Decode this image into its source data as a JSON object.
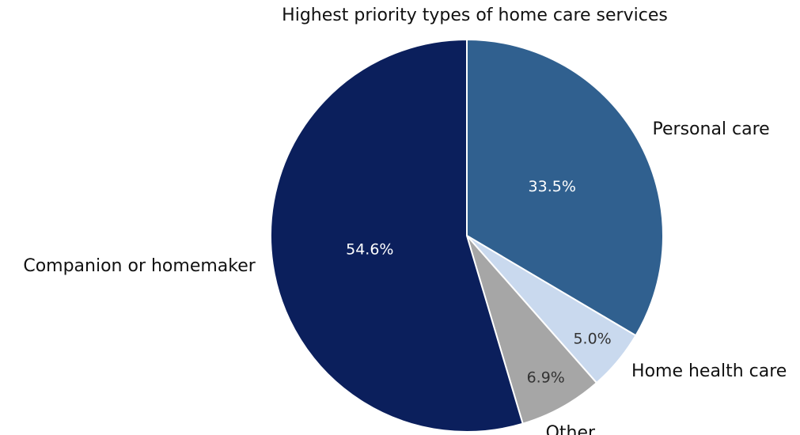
{
  "chart_data": {
    "type": "pie",
    "title": "Highest priority types of home care services",
    "categories": [
      "Personal care",
      "Home health care",
      "Other",
      "Companion or homemaker"
    ],
    "values": [
      33.5,
      5.0,
      6.9,
      54.6
    ],
    "value_labels": [
      "33.5%",
      "5.0%",
      "6.9%",
      "54.6%"
    ],
    "colors": [
      "#30608f",
      "#c9d9ee",
      "#a6a6a6",
      "#0b1f5c"
    ]
  }
}
